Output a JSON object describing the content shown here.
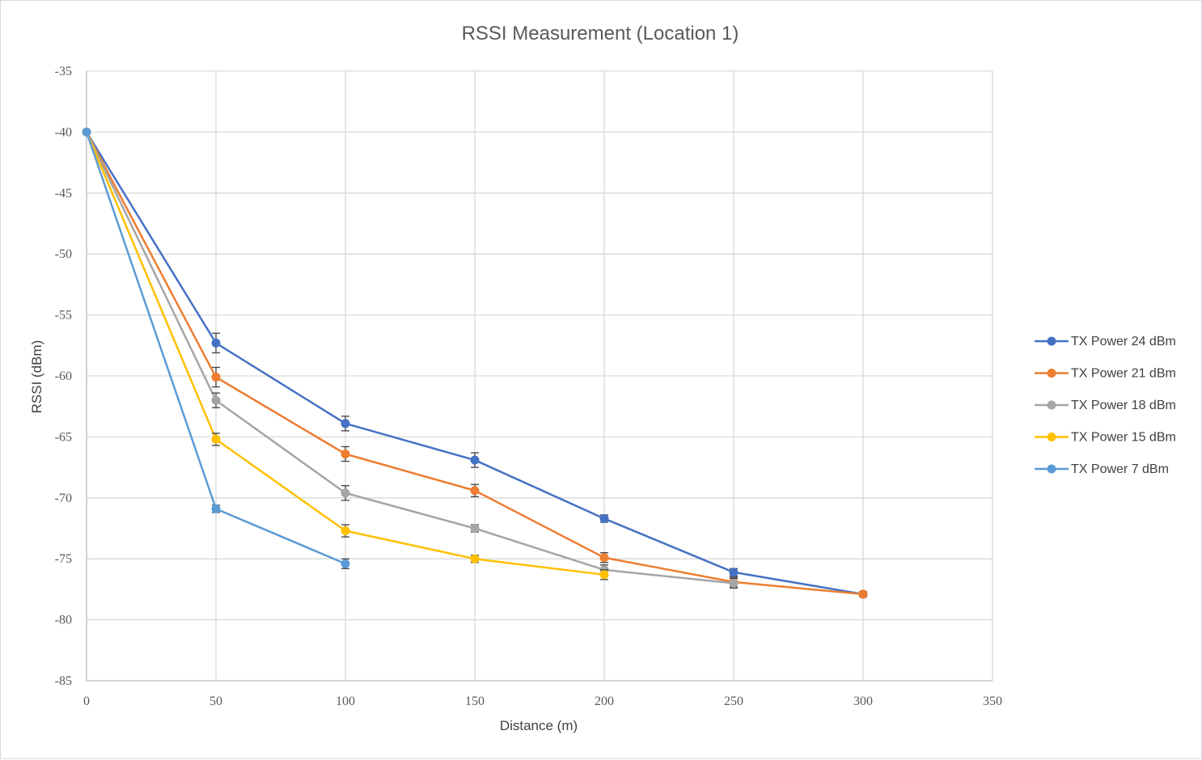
{
  "chart_data": {
    "type": "line",
    "title": "RSSI Measurement (Location 1)",
    "xlabel": "Distance (m)",
    "ylabel": "RSSI (dBm)",
    "xlim": [
      0,
      350
    ],
    "ylim": [
      -85,
      -35
    ],
    "x_ticks": [
      0,
      50,
      100,
      150,
      200,
      250,
      300,
      350
    ],
    "y_ticks": [
      -35,
      -40,
      -45,
      -50,
      -55,
      -60,
      -65,
      -70,
      -75,
      -80,
      -85
    ],
    "grid": true,
    "error_bars": true,
    "legend_position": "right",
    "series": [
      {
        "name": "TX Power 24 dBm",
        "color": "#4472C4",
        "x": [
          0,
          50,
          100,
          150,
          200,
          250,
          300
        ],
        "y": [
          -40,
          -57.3,
          -63.9,
          -66.9,
          -71.7,
          -76.1,
          -77.9
        ],
        "err": [
          0,
          0.8,
          0.6,
          0.6,
          0.3,
          0.3,
          0.2
        ]
      },
      {
        "name": "TX Power 21 dBm",
        "color": "#ED7D31",
        "x": [
          0,
          50,
          100,
          150,
          200,
          250,
          300
        ],
        "y": [
          -40,
          -60.1,
          -66.4,
          -69.4,
          -74.9,
          -76.9,
          -77.9
        ],
        "err": [
          0,
          0.8,
          0.6,
          0.5,
          0.4,
          0.4,
          0.2
        ]
      },
      {
        "name": "TX Power 18 dBm",
        "color": "#A5A5A5",
        "x": [
          0,
          50,
          100,
          150,
          200,
          250
        ],
        "y": [
          -40,
          -62.0,
          -69.6,
          -72.5,
          -75.9,
          -77.0
        ],
        "err": [
          0,
          0.6,
          0.6,
          0.3,
          0.4,
          0.4
        ]
      },
      {
        "name": "TX Power 15 dBm",
        "color": "#FFC000",
        "x": [
          0,
          50,
          100,
          150,
          200
        ],
        "y": [
          -40,
          -65.2,
          -72.7,
          -75.0,
          -76.3
        ],
        "err": [
          0,
          0.5,
          0.5,
          0.3,
          0.4
        ]
      },
      {
        "name": "TX Power 7 dBm",
        "color": "#5B9BD5",
        "x": [
          0,
          50,
          100
        ],
        "y": [
          -40,
          -70.9,
          -75.4
        ],
        "err": [
          0,
          0.3,
          0.4
        ]
      }
    ]
  }
}
